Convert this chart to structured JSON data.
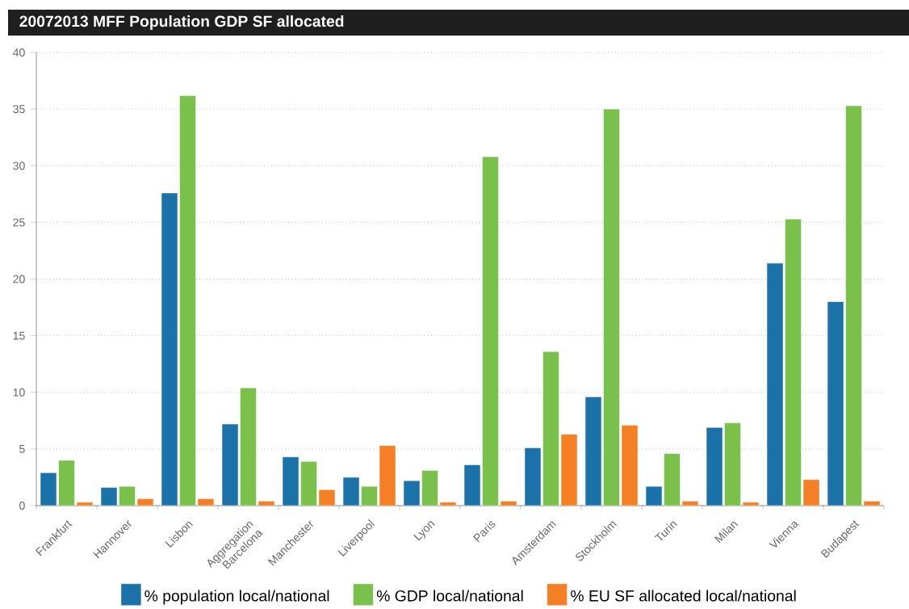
{
  "chart_data": {
    "type": "bar",
    "title": "20072013 MFF Population GDP SF allocated",
    "categories": [
      "Frankfurt",
      "Hannover",
      "Lisbon",
      "Aggregation Barcelona",
      "Manchester",
      "Liverpool",
      "Lyon",
      "Paris",
      "Amsterdam",
      "Stockholm",
      "Turin",
      "Milan",
      "Vienna",
      "Budapest"
    ],
    "series": [
      {
        "name": "% population local/national",
        "color": "#1a72a8",
        "values": [
          2.9,
          1.6,
          27.6,
          7.2,
          4.3,
          2.5,
          2.2,
          3.6,
          5.1,
          9.6,
          1.7,
          6.9,
          21.4,
          18.0
        ]
      },
      {
        "name": "% GDP local/national",
        "color": "#79c14a",
        "values": [
          4.0,
          1.7,
          36.2,
          10.4,
          3.9,
          1.7,
          3.1,
          30.8,
          13.6,
          35.0,
          4.6,
          7.3,
          25.3,
          35.3
        ]
      },
      {
        "name": "% EU SF allocated local/national",
        "color": "#f47f24",
        "values": [
          0.3,
          0.6,
          0.6,
          0.4,
          1.4,
          5.3,
          0.3,
          0.4,
          6.3,
          7.1,
          0.4,
          0.3,
          2.3,
          0.4
        ]
      }
    ],
    "ylim": [
      0,
      40
    ],
    "yticks": [
      0,
      5,
      10,
      15,
      20,
      25,
      30,
      35,
      40
    ],
    "grid": "y",
    "legend": "bottom"
  }
}
